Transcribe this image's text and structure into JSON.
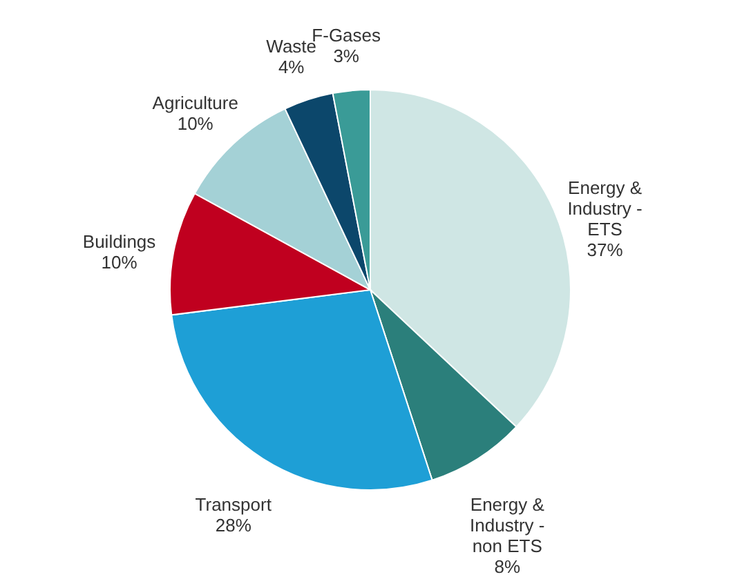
{
  "chart_data": {
    "type": "pie",
    "categories": [
      "Energy & Industry - ETS",
      "Energy & Industry - non ETS",
      "Transport",
      "Buildings",
      "Agriculture",
      "Waste",
      "F-Gases"
    ],
    "values": [
      37,
      8,
      28,
      10,
      10,
      4,
      3
    ],
    "value_labels": [
      "37%",
      "8%",
      "28%",
      "10%",
      "10%",
      "4%",
      "3%"
    ],
    "colors": [
      "#cfe6e4",
      "#2b7f7b",
      "#1e9fd6",
      "#c0001f",
      "#a4d1d6",
      "#0c476b",
      "#3a9b97"
    ],
    "legend": false
  }
}
